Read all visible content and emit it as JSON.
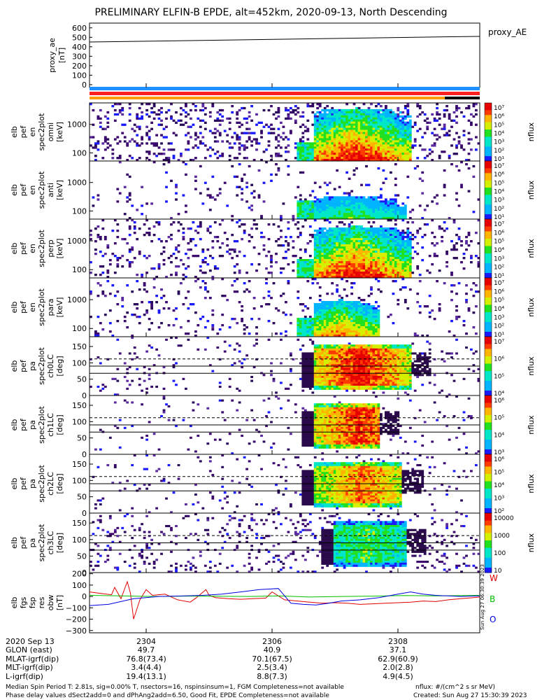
{
  "title": "PRELIMINARY ELFIN-B EPDE, alt=452km, 2020-09-13, North Descending",
  "colors": {
    "w_line": "#e00000",
    "b_line": "#00c000",
    "o_line": "#0000e0"
  },
  "chart_data": [
    {
      "type": "line",
      "ylabel": [
        "proxy_ae",
        "[nT]"
      ],
      "yticks": [
        "600",
        "500",
        "400",
        "300",
        "200",
        "100",
        "0"
      ],
      "ylim": [
        -30,
        650
      ],
      "xlim": [
        2303.1,
        2309.3
      ],
      "series": [
        {
          "name": "proxy_AE",
          "x": [
            2303.1,
            2309.3
          ],
          "values": [
            450,
            510
          ]
        }
      ]
    },
    {
      "type": "heatmap",
      "kind": "energy",
      "ylabel": [
        "elb",
        "pef",
        "en",
        "spec2plot",
        "omni",
        "[keV]"
      ],
      "yticks": [
        "1000",
        "100"
      ],
      "colorbar": {
        "label": "nflux",
        "ticks": [
          "10⁷",
          "10⁶",
          "10⁵",
          "10⁴",
          "10³",
          "10²",
          "10¹"
        ]
      }
    },
    {
      "type": "heatmap",
      "kind": "energy",
      "ylabel": [
        "elb",
        "pef",
        "en",
        "spec2plot",
        "anti",
        "[keV]"
      ],
      "yticks": [
        "1000",
        "100"
      ],
      "colorbar": {
        "label": "nflux",
        "ticks": [
          "10⁷",
          "10⁶",
          "10⁵",
          "10⁴",
          "10³",
          "10²",
          "10¹"
        ]
      }
    },
    {
      "type": "heatmap",
      "kind": "energy",
      "ylabel": [
        "elb",
        "pef",
        "en",
        "spec2plot",
        "perp",
        "[keV]"
      ],
      "yticks": [
        "1000",
        "100"
      ],
      "colorbar": {
        "label": "nflux",
        "ticks": [
          "10⁷",
          "10⁶",
          "10⁵",
          "10⁴",
          "10³",
          "10²",
          "10¹"
        ]
      }
    },
    {
      "type": "heatmap",
      "kind": "energy",
      "ylabel": [
        "elb",
        "pef",
        "en",
        "spec2plot",
        "para",
        "[keV]"
      ],
      "yticks": [
        "1000",
        "100"
      ],
      "colorbar": {
        "label": "nflux",
        "ticks": [
          "10⁷",
          "10⁶",
          "10⁵",
          "10⁴",
          "10³",
          "10²",
          "10¹"
        ]
      }
    },
    {
      "type": "heatmap",
      "kind": "pitch",
      "ylabel": [
        "elb",
        "pef",
        "pa",
        "spec2plot",
        "ch0LC",
        "[deg]"
      ],
      "yticks": [
        "150",
        "100",
        "50",
        "0"
      ],
      "colorbar": {
        "label": "nflux",
        "ticks": [
          "10⁷",
          "10⁶",
          "10⁵",
          "10⁴"
        ]
      }
    },
    {
      "type": "heatmap",
      "kind": "pitch",
      "ylabel": [
        "elb",
        "pef",
        "pa",
        "spec2plot",
        "ch1LC",
        "[deg]"
      ],
      "yticks": [
        "150",
        "100",
        "50",
        "0"
      ],
      "colorbar": {
        "label": "nflux",
        "ticks": [
          "10⁶",
          "10⁵",
          "10⁴",
          "10³"
        ]
      }
    },
    {
      "type": "heatmap",
      "kind": "pitch",
      "ylabel": [
        "elb",
        "pef",
        "pa",
        "spec2plot",
        "ch2LC",
        "[deg]"
      ],
      "yticks": [
        "150",
        "100",
        "50",
        "0"
      ],
      "colorbar": {
        "label": "nflux",
        "ticks": [
          "10⁶",
          "10⁵",
          "10⁴",
          "10³",
          "10²"
        ]
      }
    },
    {
      "type": "heatmap",
      "kind": "pitch",
      "ylabel": [
        "elb",
        "pef",
        "pa",
        "spec2plot",
        "ch3LC",
        "[deg]"
      ],
      "yticks": [
        "150",
        "100",
        "50",
        "0"
      ],
      "colorbar": {
        "label": "nflux",
        "ticks": [
          "10000",
          "1000",
          "100",
          "10"
        ]
      }
    },
    {
      "type": "line",
      "ylabel": [
        "elb",
        "fgs",
        "fsp",
        "res",
        "obw",
        "[nT]"
      ],
      "yticks": [
        "200",
        "100",
        "0",
        "−100",
        "−200",
        "−300"
      ],
      "ylim": [
        -320,
        210
      ],
      "xlim": [
        2303.1,
        2309.3
      ],
      "series": [
        {
          "name": "W",
          "x": [
            2303.1,
            2303.3,
            2303.45,
            2303.5,
            2303.6,
            2303.7,
            2303.75,
            2303.8,
            2303.9,
            2304.0,
            2304.1,
            2304.2,
            2304.3,
            2304.5,
            2304.7,
            2304.8,
            2304.95,
            2305.0,
            2305.1,
            2305.2,
            2305.3,
            2305.5,
            2305.7,
            2305.9,
            2306.0,
            2306.2,
            2306.4,
            2306.6,
            2306.8,
            2307.0,
            2307.2,
            2307.4,
            2307.6,
            2307.8,
            2308.0,
            2308.2,
            2308.4,
            2308.6,
            2308.8,
            2309.0,
            2309.2,
            2309.3
          ],
          "values": [
            40,
            25,
            15,
            80,
            -20,
            130,
            30,
            -200,
            -30,
            60,
            10,
            15,
            20,
            -30,
            -50,
            -10,
            60,
            10,
            -10,
            -15,
            -20,
            -25,
            -20,
            -15,
            40,
            -30,
            -40,
            -50,
            -60,
            -55,
            -60,
            -70,
            -65,
            -60,
            -55,
            -50,
            -40,
            -45,
            -30,
            -20,
            -10,
            -5
          ]
        },
        {
          "name": "B",
          "x": [
            2303.1,
            2303.6,
            2304.1,
            2304.6,
            2305.1,
            2305.6,
            2306.1,
            2306.6,
            2307.1,
            2307.6,
            2308.1,
            2308.6,
            2309.3
          ],
          "values": [
            10,
            5,
            0,
            3,
            2,
            0,
            5,
            -5,
            0,
            3,
            8,
            5,
            10
          ]
        },
        {
          "name": "O",
          "x": [
            2303.1,
            2303.4,
            2303.8,
            2304.2,
            2304.6,
            2304.9,
            2305.2,
            2305.5,
            2305.8,
            2306.1,
            2306.3,
            2306.5,
            2306.7,
            2306.9,
            2307.1,
            2307.4,
            2307.7,
            2308.0,
            2308.2,
            2308.4,
            2308.6,
            2308.8,
            2309.0,
            2309.3
          ],
          "values": [
            -80,
            -70,
            -20,
            0,
            5,
            10,
            20,
            40,
            60,
            70,
            -60,
            -70,
            -75,
            -60,
            -40,
            -30,
            -10,
            20,
            40,
            20,
            10,
            5,
            0,
            5
          ]
        }
      ],
      "labels": [
        "W",
        "B",
        "O"
      ]
    }
  ],
  "x_axis": {
    "ticks": [
      {
        "x": 2304,
        "label": "2304"
      },
      {
        "x": 2306,
        "label": "2306"
      },
      {
        "x": 2308,
        "label": "2308"
      }
    ],
    "row_labels": [
      "2020 Sep 13",
      "GLON (east)",
      "MLAT-igrf(dip)",
      "MLT-igrf(dip)",
      "L-igrf(dip)"
    ],
    "row_values": [
      [
        "49.7",
        "40.9",
        "37.1"
      ],
      [
        "76.8(73.4)",
        "70.1(67.5)",
        "62.9(60.9)"
      ],
      [
        "3.4(4.4)",
        "2.5(3.4)",
        "2.0(2.8)"
      ],
      [
        "19.4(13.1)",
        "8.8(7.3)",
        "4.9(4.5)"
      ]
    ]
  },
  "footer": {
    "line1": "Median Spin Period T: 2.81s, sig=0.00% T, nsectors=16, nspinsinsum=1, FGM Completeness=not available",
    "line2": "Phase delay values dSect2add=0 and dPhAng2add=6.50, Good Fit, EPDE Completeness=not available",
    "units": "nflux: #/(cm^2 s sr MeV)",
    "created": "Created: Sun Aug 27 15:30:39 2023",
    "side_stamp": "Sun Aug 27 06:30:39 2023"
  }
}
